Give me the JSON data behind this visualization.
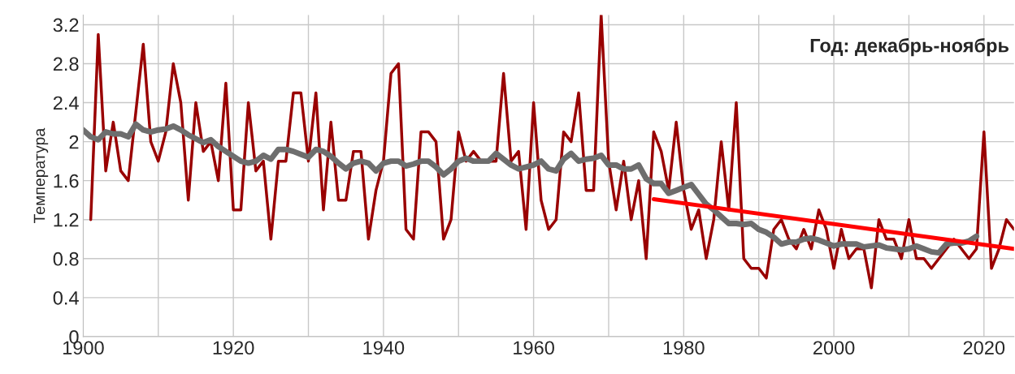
{
  "chart_data": {
    "type": "line",
    "ylabel": "Температура",
    "annotations": [
      "Год: декабрь-ноябрь"
    ],
    "xlim": [
      1900,
      2024
    ],
    "ylim": [
      0,
      3.3
    ],
    "xticks": [
      1900,
      {
        "value": 1910,
        "label": null
      },
      1920,
      {
        "value": 1930,
        "label": null
      },
      1940,
      {
        "value": 1950,
        "label": null
      },
      1960,
      {
        "value": 1970,
        "label": null
      },
      1980,
      {
        "value": 1990,
        "label": null
      },
      2000,
      {
        "value": 2010,
        "label": null
      },
      2020
    ],
    "yticks": [
      0,
      0.4,
      0.8,
      1.2,
      1.6,
      2,
      2.4,
      2.8,
      3.2
    ],
    "grid": true,
    "marker": "none",
    "line_style": "solid",
    "series": [
      {
        "color": "#990000",
        "x": [
          1901,
          1902,
          1903,
          1904,
          1905,
          1906,
          1907,
          1908,
          1909,
          1910,
          1911,
          1912,
          1913,
          1914,
          1915,
          1916,
          1917,
          1918,
          1919,
          1920,
          1921,
          1922,
          1923,
          1924,
          1925,
          1926,
          1927,
          1928,
          1929,
          1930,
          1931,
          1932,
          1933,
          1934,
          1935,
          1936,
          1937,
          1938,
          1939,
          1940,
          1941,
          1942,
          1943,
          1944,
          1945,
          1946,
          1947,
          1948,
          1949,
          1950,
          1951,
          1952,
          1953,
          1954,
          1955,
          1956,
          1957,
          1958,
          1959,
          1960,
          1961,
          1962,
          1963,
          1964,
          1965,
          1966,
          1967,
          1968,
          1969,
          1970,
          1971,
          1972,
          1973,
          1974,
          1975,
          1976,
          1977,
          1978,
          1979,
          1980,
          1981,
          1982,
          1983,
          1984,
          1985,
          1986,
          1987,
          1988,
          1989,
          1990,
          1991,
          1992,
          1993,
          1994,
          1995,
          1996,
          1997,
          1998,
          1999,
          2000,
          2001,
          2002,
          2003,
          2004,
          2005,
          2006,
          2007,
          2008,
          2009,
          2010,
          2011,
          2012,
          2013,
          2014,
          2015,
          2016,
          2017,
          2018,
          2019,
          2020,
          2021,
          2022,
          2023,
          2024
        ],
        "values": [
          1.2,
          3.1,
          1.7,
          2.2,
          1.7,
          1.6,
          2.3,
          3.0,
          2.0,
          1.8,
          2.1,
          2.8,
          2.4,
          1.4,
          2.4,
          1.9,
          2.0,
          1.6,
          2.6,
          1.3,
          1.3,
          2.4,
          1.7,
          1.8,
          1.0,
          1.8,
          1.8,
          2.5,
          2.5,
          1.8,
          2.5,
          1.3,
          2.2,
          1.4,
          1.4,
          1.9,
          1.9,
          1.0,
          1.5,
          1.8,
          2.7,
          2.8,
          1.1,
          1.0,
          2.1,
          2.1,
          2.0,
          1.0,
          1.2,
          2.1,
          1.8,
          1.9,
          1.8,
          1.8,
          1.8,
          2.7,
          1.8,
          1.9,
          1.1,
          2.4,
          1.4,
          1.1,
          1.2,
          2.1,
          2.0,
          2.5,
          1.5,
          1.5,
          3.3,
          1.8,
          1.3,
          1.8,
          1.2,
          1.6,
          0.8,
          2.1,
          1.9,
          1.5,
          2.2,
          1.5,
          1.1,
          1.3,
          0.8,
          1.2,
          2.0,
          1.3,
          2.4,
          0.8,
          0.7,
          0.7,
          0.6,
          1.1,
          1.2,
          1.0,
          0.9,
          1.1,
          0.9,
          1.3,
          1.1,
          0.7,
          1.1,
          0.8,
          0.9,
          0.9,
          0.5,
          1.2,
          1.0,
          1.0,
          0.8,
          1.2,
          0.8,
          0.8,
          0.7,
          0.8,
          0.9,
          1.0,
          0.9,
          0.8,
          0.9,
          2.1,
          0.7,
          0.9,
          1.2,
          1.1
        ]
      },
      {
        "color": "#6e6e6e",
        "x": [
          1900,
          1901,
          1902,
          1903,
          1904,
          1905,
          1906,
          1907,
          1908,
          1909,
          1910,
          1911,
          1912,
          1913,
          1914,
          1915,
          1916,
          1917,
          1918,
          1919,
          1920,
          1921,
          1922,
          1923,
          1924,
          1925,
          1926,
          1927,
          1928,
          1929,
          1930,
          1931,
          1932,
          1933,
          1934,
          1935,
          1936,
          1937,
          1938,
          1939,
          1940,
          1941,
          1942,
          1943,
          1944,
          1945,
          1946,
          1947,
          1948,
          1949,
          1950,
          1951,
          1952,
          1953,
          1954,
          1955,
          1956,
          1957,
          1958,
          1959,
          1960,
          1961,
          1962,
          1963,
          1964,
          1965,
          1966,
          1967,
          1968,
          1969,
          1970,
          1971,
          1972,
          1973,
          1974,
          1975,
          1976,
          1977,
          1978,
          1979,
          1980,
          1981,
          1982,
          1983,
          1984,
          1985,
          1986,
          1987,
          1988,
          1989,
          1990,
          1991,
          1992,
          1993,
          1994,
          1995,
          1996,
          1997,
          1998,
          1999,
          2000,
          2001,
          2002,
          2003,
          2004,
          2005,
          2006,
          2007,
          2008,
          2009,
          2010,
          2011,
          2012,
          2013,
          2014,
          2015,
          2016,
          2017,
          2018,
          2019
        ],
        "values": [
          2.12,
          2.05,
          2.02,
          2.1,
          2.08,
          2.08,
          2.05,
          2.18,
          2.12,
          2.1,
          2.12,
          2.13,
          2.16,
          2.12,
          2.07,
          2.03,
          1.99,
          2.02,
          1.95,
          1.9,
          1.85,
          1.8,
          1.78,
          1.8,
          1.86,
          1.82,
          1.92,
          1.92,
          1.9,
          1.87,
          1.84,
          1.92,
          1.9,
          1.85,
          1.78,
          1.72,
          1.78,
          1.8,
          1.78,
          1.7,
          1.78,
          1.8,
          1.8,
          1.75,
          1.77,
          1.8,
          1.8,
          1.74,
          1.66,
          1.72,
          1.8,
          1.83,
          1.8,
          1.8,
          1.8,
          1.88,
          1.82,
          1.76,
          1.72,
          1.74,
          1.76,
          1.8,
          1.72,
          1.7,
          1.82,
          1.88,
          1.8,
          1.82,
          1.83,
          1.86,
          1.76,
          1.76,
          1.72,
          1.72,
          1.76,
          1.62,
          1.57,
          1.57,
          1.47,
          1.5,
          1.53,
          1.56,
          1.46,
          1.36,
          1.3,
          1.23,
          1.16,
          1.16,
          1.15,
          1.16,
          1.1,
          1.07,
          1.02,
          0.95,
          0.97,
          0.97,
          1.0,
          1.01,
          0.99,
          0.96,
          0.93,
          0.95,
          0.95,
          0.95,
          0.92,
          0.93,
          0.94,
          0.91,
          0.9,
          0.89,
          0.9,
          0.93,
          0.9,
          0.87,
          0.86,
          0.95,
          0.96,
          0.96,
          0.98,
          1.03
        ]
      },
      {
        "color": "#ff0000",
        "x": [
          1976,
          2024
        ],
        "values": [
          1.41,
          0.9
        ]
      }
    ]
  }
}
